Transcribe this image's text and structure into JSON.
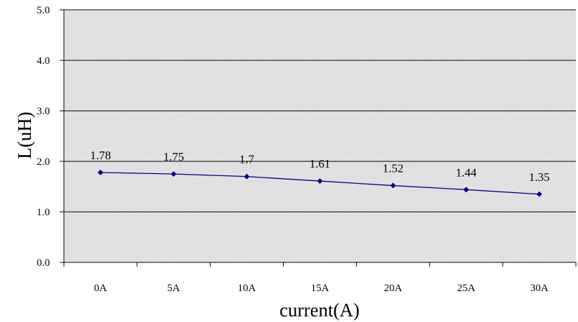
{
  "chart_data": {
    "type": "line",
    "categories": [
      "0A",
      "5A",
      "10A",
      "15A",
      "20A",
      "25A",
      "30A"
    ],
    "series": [
      {
        "values": [
          1.78,
          1.75,
          1.7,
          1.61,
          1.52,
          1.44,
          1.35
        ],
        "color": "#000080"
      }
    ],
    "data_labels": [
      "1.78",
      "1.75",
      "1.7",
      "1.61",
      "1.52",
      "1.44",
      "1.35"
    ],
    "y_tick_labels": [
      "0.0",
      "1.0",
      "2.0",
      "3.0",
      "4.0",
      "5.0"
    ],
    "xlabel": "current(A)",
    "ylabel": "L(uH)",
    "ylim": [
      0,
      5
    ],
    "grid": true,
    "legend": "none",
    "plot_background": "#d9d9d9",
    "grid_color": "#000000"
  }
}
